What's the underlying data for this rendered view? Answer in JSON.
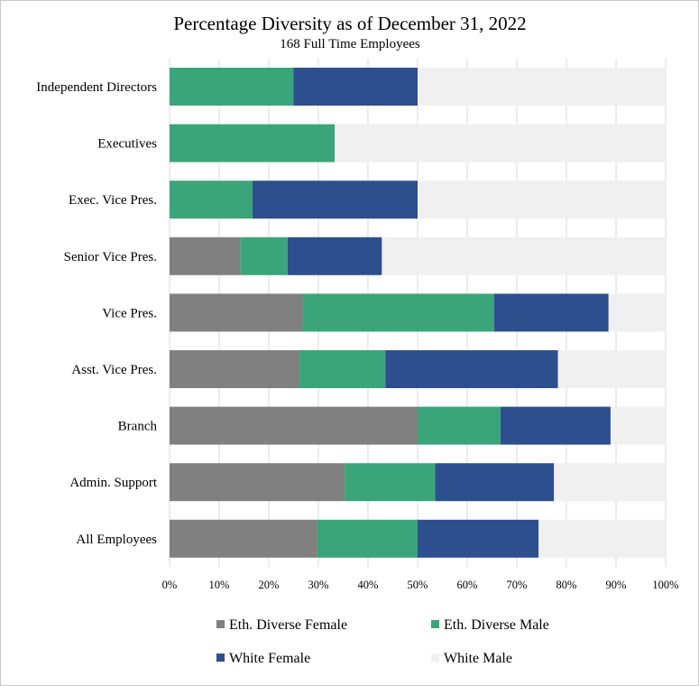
{
  "chart_data": {
    "type": "bar",
    "orientation": "horizontal",
    "stacked": true,
    "title": "Percentage Diversity as of December 31, 2022",
    "subtitle": "168 Full Time Employees",
    "categories": [
      "Independent Directors",
      "Executives",
      "Exec. Vice Pres.",
      "Senior Vice Pres.",
      "Vice Pres.",
      "Asst. Vice Pres.",
      "Branch",
      "Admin. Support",
      "All Employees"
    ],
    "series": [
      {
        "name": "Eth. Diverse Female",
        "color": "#808080",
        "values": [
          0,
          0,
          0,
          14.3,
          26.9,
          26.1,
          50.0,
          35.3,
          29.8
        ]
      },
      {
        "name": "Eth. Diverse Male",
        "color": "#3aa57a",
        "values": [
          25.0,
          33.3,
          16.7,
          9.5,
          38.5,
          17.4,
          16.7,
          18.2,
          20.2
        ]
      },
      {
        "name": "White Female",
        "color": "#2e4f8e",
        "values": [
          25.0,
          0,
          33.3,
          19.0,
          23.1,
          34.8,
          22.2,
          24.0,
          24.4
        ]
      },
      {
        "name": "White Male",
        "color": "#f0f0f0",
        "values": [
          50.0,
          66.7,
          50.0,
          57.2,
          11.5,
          21.7,
          11.1,
          22.5,
          25.6
        ]
      }
    ],
    "xlim": [
      0,
      100
    ],
    "xticks": [
      "0%",
      "10%",
      "20%",
      "30%",
      "40%",
      "50%",
      "60%",
      "70%",
      "80%",
      "90%",
      "100%"
    ],
    "grid": true,
    "legend_position": "bottom"
  }
}
